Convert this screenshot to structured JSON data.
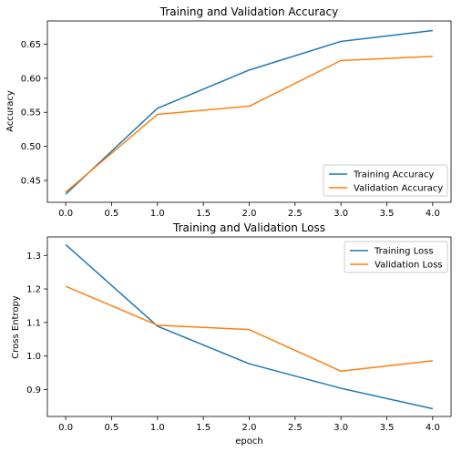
{
  "chart_data": [
    {
      "type": "line",
      "title": "Training and Validation Accuracy",
      "xlabel": "",
      "ylabel": "Accuracy",
      "xlim": [
        -0.2,
        4.2
      ],
      "ylim": [
        0.418,
        0.684
      ],
      "xticks": [
        0.0,
        0.5,
        1.0,
        1.5,
        2.0,
        2.5,
        3.0,
        3.5,
        4.0
      ],
      "xtick_labels": [
        "0.0",
        "0.5",
        "1.0",
        "1.5",
        "2.0",
        "2.5",
        "3.0",
        "3.5",
        "4.0"
      ],
      "yticks": [
        0.45,
        0.5,
        0.55,
        0.6,
        0.65
      ],
      "ytick_labels": [
        "0.45",
        "0.50",
        "0.55",
        "0.60",
        "0.65"
      ],
      "grid": false,
      "legend_position": "lower-right",
      "series": [
        {
          "name": "Training Accuracy",
          "color": "#1f77b4",
          "x": [
            0,
            1,
            2,
            3,
            4
          ],
          "y": [
            0.43,
            0.556,
            0.612,
            0.654,
            0.67
          ]
        },
        {
          "name": "Validation Accuracy",
          "color": "#ff7f0e",
          "x": [
            0,
            1,
            2,
            3,
            4
          ],
          "y": [
            0.433,
            0.547,
            0.559,
            0.626,
            0.632
          ]
        }
      ]
    },
    {
      "type": "line",
      "title": "Training and Validation Loss",
      "xlabel": "epoch",
      "ylabel": "Cross Entropy",
      "xlim": [
        -0.2,
        4.2
      ],
      "ylim": [
        0.82,
        1.355
      ],
      "xticks": [
        0.0,
        0.5,
        1.0,
        1.5,
        2.0,
        2.5,
        3.0,
        3.5,
        4.0
      ],
      "xtick_labels": [
        "0.0",
        "0.5",
        "1.0",
        "1.5",
        "2.0",
        "2.5",
        "3.0",
        "3.5",
        "4.0"
      ],
      "yticks": [
        0.9,
        1.0,
        1.1,
        1.2,
        1.3
      ],
      "ytick_labels": [
        "0.9",
        "1.0",
        "1.1",
        "1.2",
        "1.3"
      ],
      "grid": false,
      "legend_position": "upper-right",
      "series": [
        {
          "name": "Training Loss",
          "color": "#1f77b4",
          "x": [
            0,
            1,
            2,
            3,
            4
          ],
          "y": [
            1.332,
            1.089,
            0.977,
            0.904,
            0.843
          ]
        },
        {
          "name": "Validation Loss",
          "color": "#ff7f0e",
          "x": [
            0,
            1,
            2,
            3,
            4
          ],
          "y": [
            1.208,
            1.092,
            1.079,
            0.955,
            0.986
          ]
        }
      ]
    }
  ]
}
